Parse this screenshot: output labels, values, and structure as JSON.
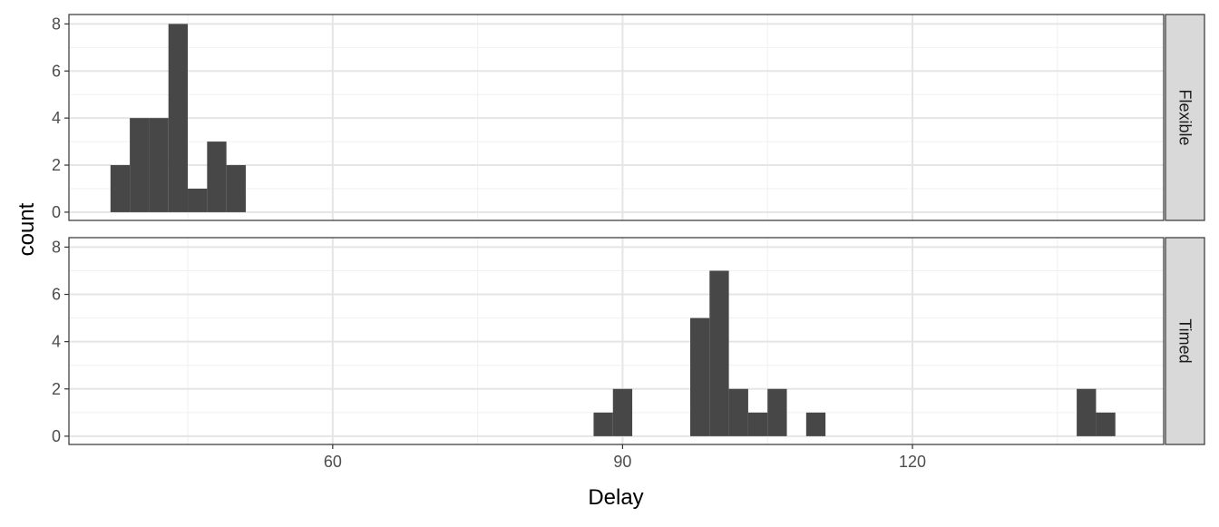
{
  "chart_data": {
    "type": "bar",
    "subtype": "faceted-histogram",
    "xlabel": "Delay",
    "ylabel": "count",
    "xlim": [
      32.7,
      146
    ],
    "ylim": [
      -0.35,
      8.4
    ],
    "x_ticks": [
      60,
      90,
      120
    ],
    "y_ticks": [
      0,
      2,
      4,
      6,
      8
    ],
    "bin_width": 2,
    "grid": true,
    "bar_color": "#474747",
    "panels": [
      {
        "label": "Flexible",
        "bins": [
          {
            "x": 38,
            "count": 2
          },
          {
            "x": 40,
            "count": 4
          },
          {
            "x": 42,
            "count": 4
          },
          {
            "x": 44,
            "count": 8
          },
          {
            "x": 46,
            "count": 1
          },
          {
            "x": 48,
            "count": 3
          },
          {
            "x": 50,
            "count": 2
          }
        ]
      },
      {
        "label": "Timed",
        "bins": [
          {
            "x": 88,
            "count": 1
          },
          {
            "x": 90,
            "count": 2
          },
          {
            "x": 98,
            "count": 5
          },
          {
            "x": 100,
            "count": 7
          },
          {
            "x": 102,
            "count": 2
          },
          {
            "x": 104,
            "count": 1
          },
          {
            "x": 106,
            "count": 2
          },
          {
            "x": 110,
            "count": 1
          },
          {
            "x": 138,
            "count": 2
          },
          {
            "x": 140,
            "count": 1
          }
        ]
      }
    ]
  }
}
